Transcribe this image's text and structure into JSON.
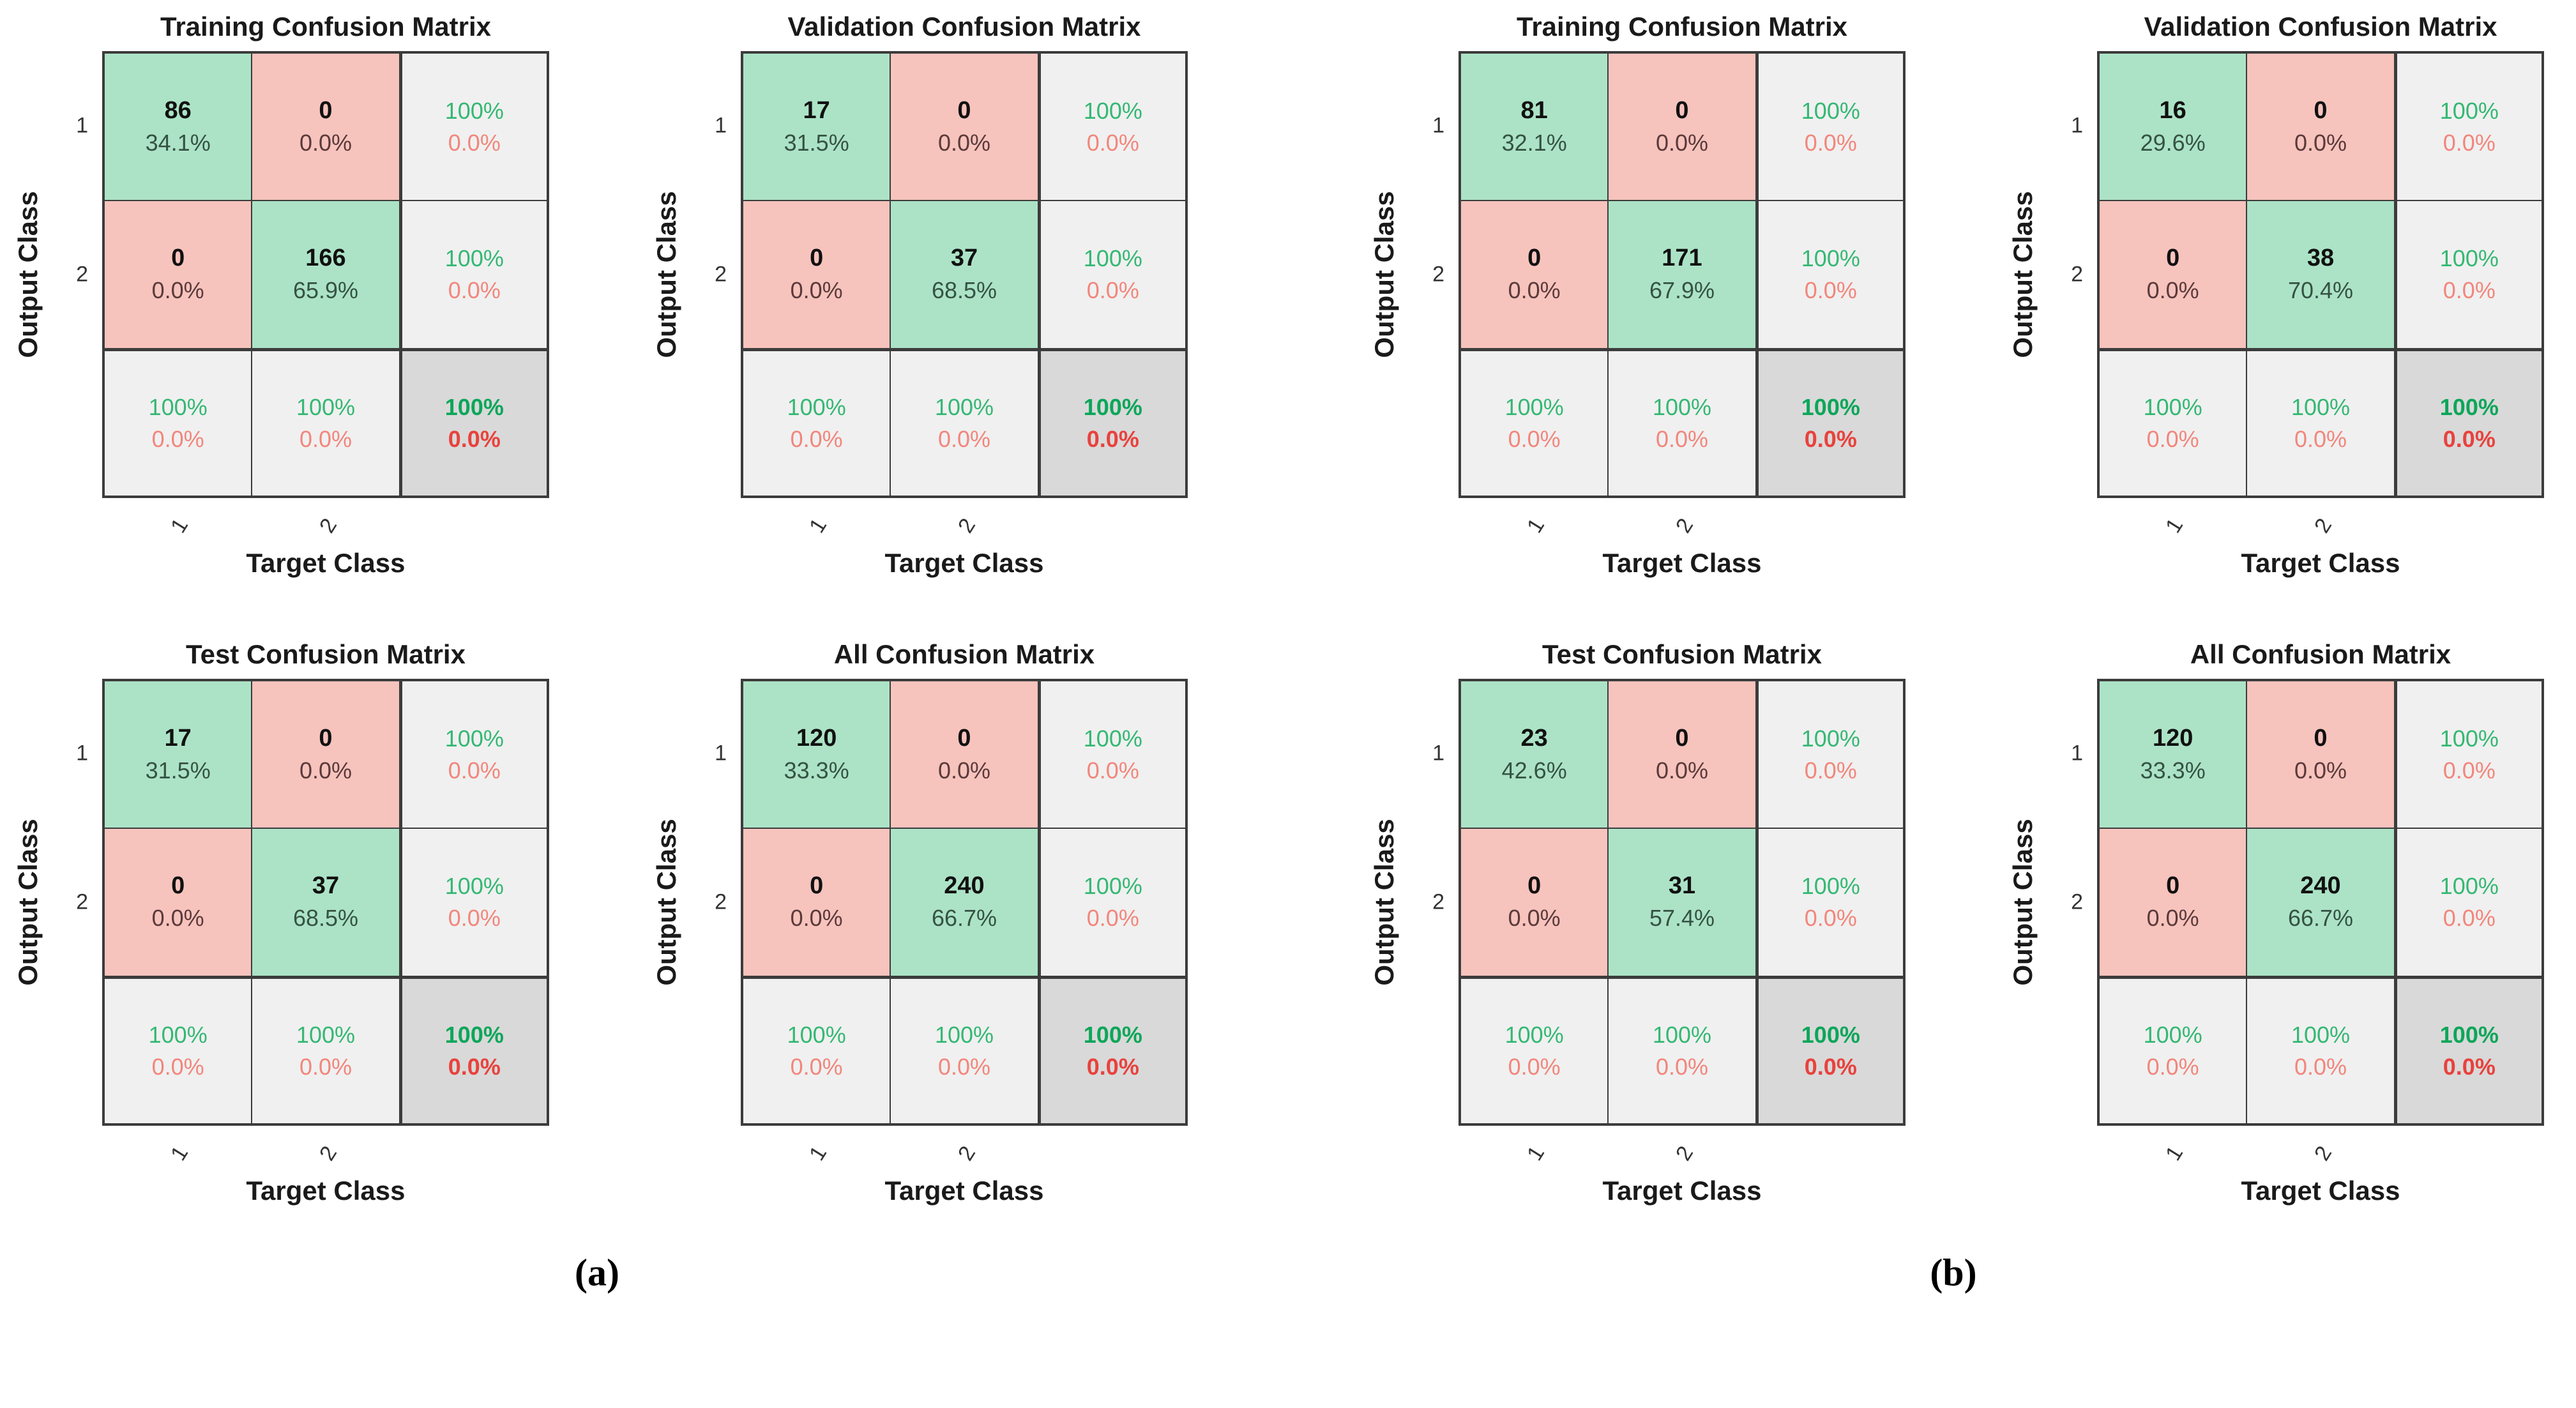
{
  "figure": {
    "panels": [
      {
        "id": "a",
        "label": "(a)"
      },
      {
        "id": "b",
        "label": "(b)"
      }
    ]
  },
  "colors": {
    "correct_cell_bg": "#ace3c6",
    "incorrect_cell_bg": "#f7c3bd",
    "summary_cell_bg": "#f0f0f0",
    "total_cell_bg": "#d9d9d9",
    "grid_border": "#3c3c3c",
    "count_text": "#111111",
    "summary_green_text": "#34b873",
    "summary_red_text": "#f2867c",
    "total_green_text": "#0da65a",
    "total_red_text": "#e8423d"
  },
  "chart_data": [
    {
      "type": "heatmap",
      "panel": "a",
      "title": "Training Confusion Matrix",
      "xlabel": "Target Class",
      "ylabel": "Output Class",
      "classes": [
        "1",
        "2"
      ],
      "counts": [
        [
          86,
          0
        ],
        [
          0,
          166
        ]
      ],
      "percents": [
        [
          "34.1%",
          "0.0%"
        ],
        [
          "0.0%",
          "65.9%"
        ]
      ],
      "row_summary": [
        {
          "top": "100%",
          "bottom": "0.0%"
        },
        {
          "top": "100%",
          "bottom": "0.0%"
        }
      ],
      "col_summary": [
        {
          "top": "100%",
          "bottom": "0.0%"
        },
        {
          "top": "100%",
          "bottom": "0.0%"
        }
      ],
      "overall": {
        "top": "100%",
        "bottom": "0.0%"
      }
    },
    {
      "type": "heatmap",
      "panel": "a",
      "title": "Validation Confusion Matrix",
      "xlabel": "Target Class",
      "ylabel": "Output Class",
      "classes": [
        "1",
        "2"
      ],
      "counts": [
        [
          17,
          0
        ],
        [
          0,
          37
        ]
      ],
      "percents": [
        [
          "31.5%",
          "0.0%"
        ],
        [
          "0.0%",
          "68.5%"
        ]
      ],
      "row_summary": [
        {
          "top": "100%",
          "bottom": "0.0%"
        },
        {
          "top": "100%",
          "bottom": "0.0%"
        }
      ],
      "col_summary": [
        {
          "top": "100%",
          "bottom": "0.0%"
        },
        {
          "top": "100%",
          "bottom": "0.0%"
        }
      ],
      "overall": {
        "top": "100%",
        "bottom": "0.0%"
      }
    },
    {
      "type": "heatmap",
      "panel": "a",
      "title": "Test Confusion Matrix",
      "xlabel": "Target Class",
      "ylabel": "Output Class",
      "classes": [
        "1",
        "2"
      ],
      "counts": [
        [
          17,
          0
        ],
        [
          0,
          37
        ]
      ],
      "percents": [
        [
          "31.5%",
          "0.0%"
        ],
        [
          "0.0%",
          "68.5%"
        ]
      ],
      "row_summary": [
        {
          "top": "100%",
          "bottom": "0.0%"
        },
        {
          "top": "100%",
          "bottom": "0.0%"
        }
      ],
      "col_summary": [
        {
          "top": "100%",
          "bottom": "0.0%"
        },
        {
          "top": "100%",
          "bottom": "0.0%"
        }
      ],
      "overall": {
        "top": "100%",
        "bottom": "0.0%"
      }
    },
    {
      "type": "heatmap",
      "panel": "a",
      "title": "All Confusion Matrix",
      "xlabel": "Target Class",
      "ylabel": "Output Class",
      "classes": [
        "1",
        "2"
      ],
      "counts": [
        [
          120,
          0
        ],
        [
          0,
          240
        ]
      ],
      "percents": [
        [
          "33.3%",
          "0.0%"
        ],
        [
          "0.0%",
          "66.7%"
        ]
      ],
      "row_summary": [
        {
          "top": "100%",
          "bottom": "0.0%"
        },
        {
          "top": "100%",
          "bottom": "0.0%"
        }
      ],
      "col_summary": [
        {
          "top": "100%",
          "bottom": "0.0%"
        },
        {
          "top": "100%",
          "bottom": "0.0%"
        }
      ],
      "overall": {
        "top": "100%",
        "bottom": "0.0%"
      }
    },
    {
      "type": "heatmap",
      "panel": "b",
      "title": "Training Confusion Matrix",
      "xlabel": "Target Class",
      "ylabel": "Output Class",
      "classes": [
        "1",
        "2"
      ],
      "counts": [
        [
          81,
          0
        ],
        [
          0,
          171
        ]
      ],
      "percents": [
        [
          "32.1%",
          "0.0%"
        ],
        [
          "0.0%",
          "67.9%"
        ]
      ],
      "row_summary": [
        {
          "top": "100%",
          "bottom": "0.0%"
        },
        {
          "top": "100%",
          "bottom": "0.0%"
        }
      ],
      "col_summary": [
        {
          "top": "100%",
          "bottom": "0.0%"
        },
        {
          "top": "100%",
          "bottom": "0.0%"
        }
      ],
      "overall": {
        "top": "100%",
        "bottom": "0.0%"
      }
    },
    {
      "type": "heatmap",
      "panel": "b",
      "title": "Validation Confusion Matrix",
      "xlabel": "Target Class",
      "ylabel": "Output Class",
      "classes": [
        "1",
        "2"
      ],
      "counts": [
        [
          16,
          0
        ],
        [
          0,
          38
        ]
      ],
      "percents": [
        [
          "29.6%",
          "0.0%"
        ],
        [
          "0.0%",
          "70.4%"
        ]
      ],
      "row_summary": [
        {
          "top": "100%",
          "bottom": "0.0%"
        },
        {
          "top": "100%",
          "bottom": "0.0%"
        }
      ],
      "col_summary": [
        {
          "top": "100%",
          "bottom": "0.0%"
        },
        {
          "top": "100%",
          "bottom": "0.0%"
        }
      ],
      "overall": {
        "top": "100%",
        "bottom": "0.0%"
      }
    },
    {
      "type": "heatmap",
      "panel": "b",
      "title": "Test Confusion Matrix",
      "xlabel": "Target Class",
      "ylabel": "Output Class",
      "classes": [
        "1",
        "2"
      ],
      "counts": [
        [
          23,
          0
        ],
        [
          0,
          31
        ]
      ],
      "percents": [
        [
          "42.6%",
          "0.0%"
        ],
        [
          "0.0%",
          "57.4%"
        ]
      ],
      "row_summary": [
        {
          "top": "100%",
          "bottom": "0.0%"
        },
        {
          "top": "100%",
          "bottom": "0.0%"
        }
      ],
      "col_summary": [
        {
          "top": "100%",
          "bottom": "0.0%"
        },
        {
          "top": "100%",
          "bottom": "0.0%"
        }
      ],
      "overall": {
        "top": "100%",
        "bottom": "0.0%"
      }
    },
    {
      "type": "heatmap",
      "panel": "b",
      "title": "All Confusion Matrix",
      "xlabel": "Target Class",
      "ylabel": "Output Class",
      "classes": [
        "1",
        "2"
      ],
      "counts": [
        [
          120,
          0
        ],
        [
          0,
          240
        ]
      ],
      "percents": [
        [
          "33.3%",
          "0.0%"
        ],
        [
          "0.0%",
          "66.7%"
        ]
      ],
      "row_summary": [
        {
          "top": "100%",
          "bottom": "0.0%"
        },
        {
          "top": "100%",
          "bottom": "0.0%"
        }
      ],
      "col_summary": [
        {
          "top": "100%",
          "bottom": "0.0%"
        },
        {
          "top": "100%",
          "bottom": "0.0%"
        }
      ],
      "overall": {
        "top": "100%",
        "bottom": "0.0%"
      }
    }
  ]
}
